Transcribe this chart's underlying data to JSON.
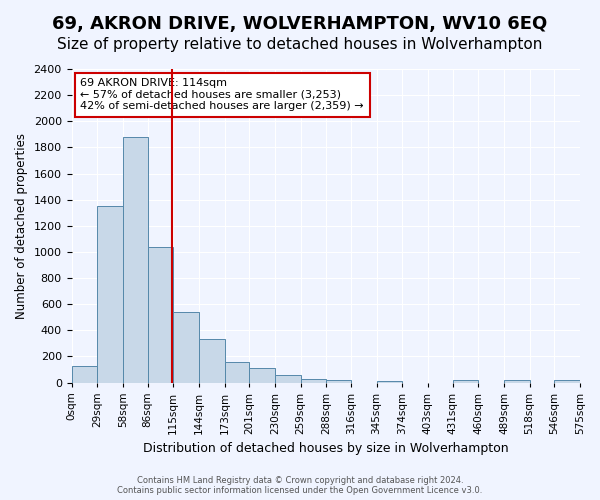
{
  "title": "69, AKRON DRIVE, WOLVERHAMPTON, WV10 6EQ",
  "subtitle": "Size of property relative to detached houses in Wolverhampton",
  "bar_values": [
    125,
    1350,
    1880,
    1040,
    540,
    330,
    160,
    110,
    60,
    30,
    20,
    0,
    15,
    0,
    0,
    20,
    0,
    20,
    0,
    20
  ],
  "bin_edges": [
    0,
    29,
    58,
    86,
    115,
    144,
    173,
    201,
    230,
    259,
    288,
    316,
    345,
    374,
    403,
    431,
    460,
    489,
    518,
    546,
    575
  ],
  "x_labels": [
    "0sqm",
    "29sqm",
    "58sqm",
    "86sqm",
    "115sqm",
    "144sqm",
    "173sqm",
    "201sqm",
    "230sqm",
    "259sqm",
    "288sqm",
    "316sqm",
    "345sqm",
    "374sqm",
    "403sqm",
    "431sqm",
    "460sqm",
    "489sqm",
    "518sqm",
    "546sqm",
    "575sqm"
  ],
  "ylabel": "Number of detached properties",
  "xlabel": "Distribution of detached houses by size in Wolverhampton",
  "ylim": [
    0,
    2400
  ],
  "yticks": [
    0,
    200,
    400,
    600,
    800,
    1000,
    1200,
    1400,
    1600,
    1800,
    2000,
    2200,
    2400
  ],
  "bar_color": "#c8d8e8",
  "bar_edgecolor": "#5588aa",
  "vline_x": 114,
  "vline_color": "#cc0000",
  "annotation_title": "69 AKRON DRIVE: 114sqm",
  "annotation_line1": "← 57% of detached houses are smaller (3,253)",
  "annotation_line2": "42% of semi-detached houses are larger (2,359) →",
  "annotation_box_color": "#ffffff",
  "annotation_box_edgecolor": "#cc0000",
  "title_fontsize": 13,
  "subtitle_fontsize": 11,
  "footer_line1": "Contains HM Land Registry data © Crown copyright and database right 2024.",
  "footer_line2": "Contains public sector information licensed under the Open Government Licence v3.0.",
  "background_color": "#f0f4ff"
}
